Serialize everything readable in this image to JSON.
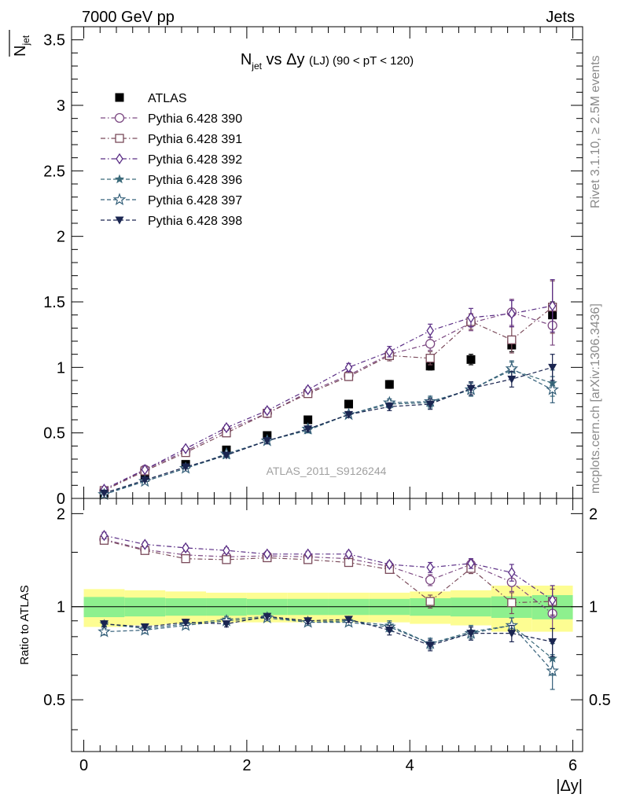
{
  "header": {
    "left": "7000 GeV pp",
    "right": "Jets"
  },
  "side_labels": {
    "rivet": "Rivet 3.1.10, ≥ 2.5M events",
    "mcplots": "mcplots.cern.ch [arXiv:1306.3436]"
  },
  "chart_data": [
    {
      "type": "scatter",
      "panel": "main",
      "title": {
        "main": "N",
        "sub": "jet",
        "rest": " vs Δy ",
        "small": "(LJ)",
        "tail": " (90 < pT < 120)"
      },
      "ylabel": {
        "main": "N",
        "sub": "jet"
      },
      "watermark": "ATLAS_2011_S9126244",
      "xlim": [
        -0.15,
        6.12
      ],
      "ylim": [
        0,
        3.6
      ],
      "yticks": [
        0,
        0.5,
        1,
        1.5,
        2,
        2.5,
        3,
        3.5
      ],
      "ytick_labels": [
        "0",
        "0.5",
        "1",
        "1.5",
        "2",
        "2.5",
        "3",
        "3.5"
      ],
      "legend_position": "top-left",
      "x": [
        0.25,
        0.75,
        1.25,
        1.75,
        2.25,
        2.75,
        3.25,
        3.75,
        4.25,
        4.75,
        5.25,
        5.75
      ],
      "series": [
        {
          "name": "ATLAS",
          "color": "#000000",
          "marker": "filled-square",
          "line": "none",
          "values": [
            0.04,
            0.16,
            0.26,
            0.37,
            0.48,
            0.6,
            0.72,
            0.87,
            1.01,
            1.06,
            1.17,
            1.4
          ],
          "errors": [
            0.01,
            0.01,
            0.01,
            0.02,
            0.02,
            0.02,
            0.02,
            0.03,
            0.03,
            0.04,
            0.05,
            0.1
          ]
        },
        {
          "name": "Pythia 6.428 390",
          "color": "#7d4a83",
          "marker": "open-circle",
          "line": "dashdot",
          "values": [
            0.06,
            0.22,
            0.36,
            0.52,
            0.65,
            0.81,
            0.94,
            1.1,
            1.18,
            1.34,
            1.42,
            1.32
          ],
          "errors": [
            0.01,
            0.01,
            0.01,
            0.02,
            0.02,
            0.02,
            0.03,
            0.04,
            0.05,
            0.06,
            0.1,
            0.15
          ]
        },
        {
          "name": "Pythia 6.428 391",
          "color": "#7a4a5a",
          "marker": "open-square",
          "line": "dashdot",
          "values": [
            0.06,
            0.21,
            0.35,
            0.5,
            0.65,
            0.8,
            0.93,
            1.09,
            1.07,
            1.35,
            1.21,
            1.46
          ],
          "errors": [
            0.01,
            0.01,
            0.01,
            0.02,
            0.02,
            0.02,
            0.03,
            0.04,
            0.05,
            0.06,
            0.1,
            0.2
          ]
        },
        {
          "name": "Pythia 6.428 392",
          "color": "#5a2d85",
          "marker": "open-diamond",
          "line": "dashdot",
          "values": [
            0.07,
            0.22,
            0.38,
            0.54,
            0.67,
            0.83,
            1.0,
            1.12,
            1.28,
            1.38,
            1.41,
            1.47
          ],
          "errors": [
            0.01,
            0.01,
            0.01,
            0.02,
            0.02,
            0.02,
            0.03,
            0.04,
            0.05,
            0.07,
            0.1,
            0.2
          ]
        },
        {
          "name": "Pythia 6.428 396",
          "color": "#3b6a7a",
          "marker": "filled-star",
          "line": "dashed",
          "values": [
            0.04,
            0.13,
            0.23,
            0.33,
            0.44,
            0.52,
            0.64,
            0.72,
            0.73,
            0.83,
            0.98,
            0.88
          ],
          "errors": [
            0.005,
            0.01,
            0.01,
            0.01,
            0.02,
            0.02,
            0.02,
            0.03,
            0.04,
            0.05,
            0.06,
            0.1
          ]
        },
        {
          "name": "Pythia 6.428 397",
          "color": "#35607a",
          "marker": "open-star",
          "line": "dashed",
          "values": [
            0.03,
            0.13,
            0.23,
            0.34,
            0.44,
            0.53,
            0.64,
            0.73,
            0.74,
            0.83,
            0.99,
            0.83
          ],
          "errors": [
            0.005,
            0.01,
            0.01,
            0.01,
            0.02,
            0.02,
            0.02,
            0.03,
            0.04,
            0.05,
            0.06,
            0.1
          ]
        },
        {
          "name": "Pythia 6.428 398",
          "color": "#1a2550",
          "marker": "filled-triangle-down",
          "line": "dashed",
          "values": [
            0.04,
            0.14,
            0.24,
            0.33,
            0.44,
            0.53,
            0.64,
            0.7,
            0.72,
            0.84,
            0.91,
            1.0
          ],
          "errors": [
            0.005,
            0.01,
            0.01,
            0.01,
            0.02,
            0.02,
            0.02,
            0.03,
            0.04,
            0.05,
            0.06,
            0.1
          ]
        }
      ]
    },
    {
      "type": "scatter",
      "panel": "ratio",
      "ylabel": "Ratio to ATLAS",
      "xlabel": "|Δy|",
      "xlim": [
        -0.15,
        6.12
      ],
      "xticks": [
        0,
        2,
        4,
        6
      ],
      "xtick_labels": [
        "0",
        "2",
        "4",
        "6"
      ],
      "ylim": [
        0.34,
        2.24
      ],
      "yticks": [
        0.5,
        1,
        2
      ],
      "ytick_labels": [
        "0.5",
        "1",
        "2"
      ],
      "reference_line": 1,
      "band_edges": [
        0.0,
        0.5,
        1.0,
        1.5,
        2.0,
        2.5,
        3.0,
        3.5,
        4.0,
        4.5,
        5.0,
        5.5,
        6.0
      ],
      "band_inner": [
        0.075,
        0.07,
        0.065,
        0.065,
        0.06,
        0.06,
        0.06,
        0.06,
        0.065,
        0.07,
        0.08,
        0.09
      ],
      "band_outer": [
        0.14,
        0.13,
        0.12,
        0.11,
        0.11,
        0.11,
        0.11,
        0.11,
        0.12,
        0.13,
        0.17,
        0.17
      ],
      "band_colors": {
        "inner": "#8ef08e",
        "outer": "#fdfd92"
      },
      "x": [
        0.25,
        0.75,
        1.25,
        1.75,
        2.25,
        2.75,
        3.25,
        3.75,
        4.25,
        4.75,
        5.25,
        5.75
      ],
      "series": [
        {
          "name": "Pythia 6.428 390",
          "color": "#7d4a83",
          "marker": "open-circle",
          "line": "dashdot",
          "values": [
            1.65,
            1.53,
            1.47,
            1.45,
            1.46,
            1.45,
            1.43,
            1.35,
            1.22,
            1.37,
            1.2,
            0.95
          ],
          "errors": [
            0.04,
            0.03,
            0.03,
            0.03,
            0.03,
            0.03,
            0.03,
            0.03,
            0.05,
            0.05,
            0.08,
            0.1
          ]
        },
        {
          "name": "Pythia 6.428 391",
          "color": "#7a4a5a",
          "marker": "open-square",
          "line": "dashdot",
          "values": [
            1.64,
            1.52,
            1.43,
            1.42,
            1.44,
            1.42,
            1.39,
            1.32,
            1.04,
            1.33,
            1.03,
            1.04
          ],
          "errors": [
            0.04,
            0.03,
            0.03,
            0.03,
            0.03,
            0.03,
            0.03,
            0.03,
            0.05,
            0.05,
            0.08,
            0.1
          ]
        },
        {
          "name": "Pythia 6.428 392",
          "color": "#5a2d85",
          "marker": "open-diamond",
          "line": "dashdot",
          "values": [
            1.7,
            1.59,
            1.55,
            1.52,
            1.48,
            1.48,
            1.48,
            1.37,
            1.34,
            1.38,
            1.29,
            1.05
          ],
          "errors": [
            0.04,
            0.03,
            0.03,
            0.03,
            0.03,
            0.03,
            0.03,
            0.03,
            0.05,
            0.05,
            0.08,
            0.12
          ]
        },
        {
          "name": "Pythia 6.428 396",
          "color": "#3b6a7a",
          "marker": "filled-star",
          "line": "dashed",
          "values": [
            0.88,
            0.85,
            0.88,
            0.91,
            0.93,
            0.89,
            0.9,
            0.87,
            0.76,
            0.83,
            0.87,
            0.68
          ],
          "errors": [
            0.02,
            0.02,
            0.02,
            0.02,
            0.02,
            0.02,
            0.02,
            0.03,
            0.03,
            0.04,
            0.05,
            0.08
          ]
        },
        {
          "name": "Pythia 6.428 397",
          "color": "#35607a",
          "marker": "open-star",
          "line": "dashed",
          "values": [
            0.83,
            0.84,
            0.87,
            0.9,
            0.92,
            0.89,
            0.89,
            0.86,
            0.76,
            0.82,
            0.87,
            0.62
          ],
          "errors": [
            0.02,
            0.02,
            0.02,
            0.02,
            0.02,
            0.02,
            0.02,
            0.03,
            0.03,
            0.04,
            0.05,
            0.08
          ]
        },
        {
          "name": "Pythia 6.428 398",
          "color": "#1a2550",
          "marker": "filled-triangle-down",
          "line": "dashed",
          "values": [
            0.88,
            0.86,
            0.89,
            0.88,
            0.93,
            0.9,
            0.91,
            0.84,
            0.75,
            0.82,
            0.82,
            0.77
          ],
          "errors": [
            0.02,
            0.02,
            0.02,
            0.02,
            0.02,
            0.02,
            0.02,
            0.03,
            0.03,
            0.04,
            0.05,
            0.08
          ]
        }
      ]
    }
  ]
}
